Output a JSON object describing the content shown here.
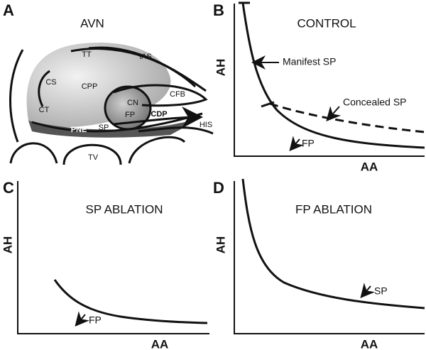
{
  "panels": [
    {
      "letter": "A",
      "title": "AVN",
      "labels": [
        "TT",
        "IAS",
        "CS",
        "CPP",
        "CFB",
        "CN",
        "CT",
        "FP",
        "CDP",
        "PNE",
        "SP",
        "HIS",
        "TV"
      ]
    },
    {
      "letter": "B",
      "title": "CONTROL",
      "y_label": "AH",
      "x_label": "AA",
      "annotations": [
        "Manifest SP",
        "Concealed SP",
        "FP"
      ]
    },
    {
      "letter": "C",
      "title": "SP ABLATION",
      "y_label": "AH",
      "x_label": "AA",
      "annotations": [
        "FP"
      ]
    },
    {
      "letter": "D",
      "title": "FP ABLATION",
      "y_label": "AH",
      "x_label": "AA",
      "annotations": [
        "SP"
      ]
    }
  ]
}
